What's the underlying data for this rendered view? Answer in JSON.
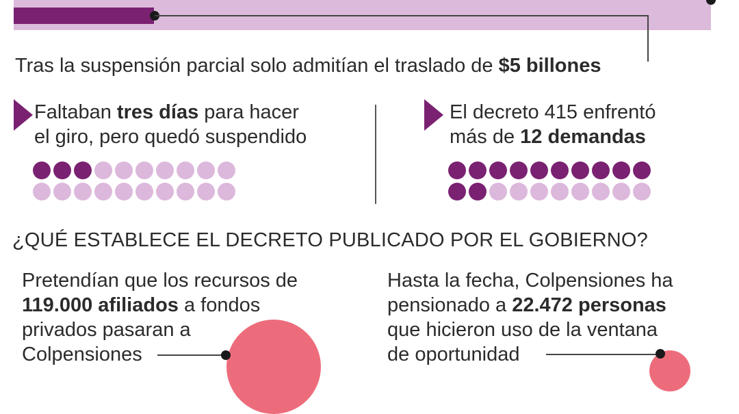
{
  "colors": {
    "purple": "#7a2171",
    "purple_light": "#dcb8dc",
    "bar_background": "#dbbadb",
    "pink": "#ed6c7c"
  },
  "headline": {
    "prefix": "Tras la suspensión parcial solo admitían el traslado de ",
    "highlight": "$5 billones"
  },
  "stat_left": {
    "line1_before": "Faltaban ",
    "line1_bold": "tres días",
    "line1_after": " para hacer",
    "line2": "el giro, pero quedó suspendido",
    "dots_total": 20,
    "dots_filled": 3
  },
  "stat_right": {
    "line1": "El decreto 415 enfrentó",
    "line2_before": "más de ",
    "line2_bold": "12 demandas",
    "dots_total": 20,
    "dots_filled": 12
  },
  "section": {
    "title": "¿QUÉ ESTABLECE EL DECRETO PUBLICADO POR EL GOBIERNO?"
  },
  "block_left": {
    "line1": "Pretendían que los recursos de",
    "line2_bold": "119.000 afiliados",
    "line2_after": " a fondos",
    "line3": "privados pasaran a",
    "line4": "Colpensiones",
    "value": 119000
  },
  "block_right": {
    "line1": "Hasta la fecha, Colpensiones ha",
    "line2_before": "pensionado a ",
    "line2_bold": "22.472 personas",
    "line3": "que hicieron uso de la ventana",
    "line4": "de oportunidad",
    "value": 22472
  }
}
